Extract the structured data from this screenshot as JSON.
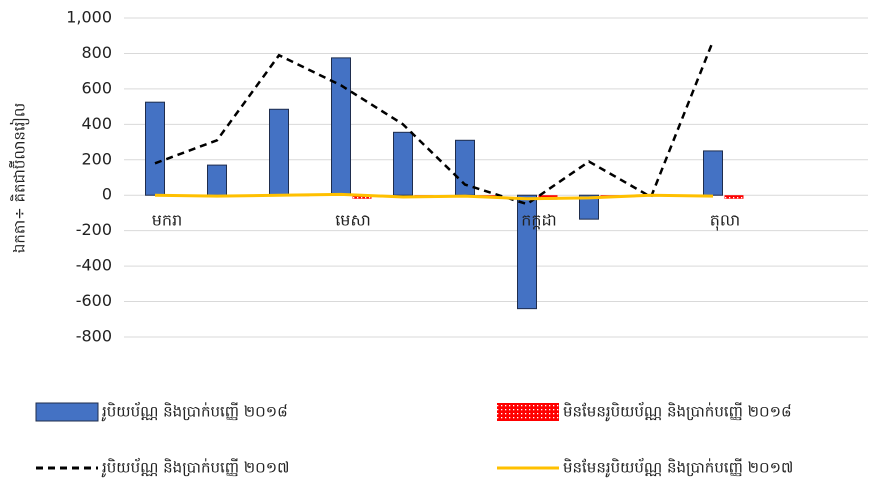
{
  "chart_data": {
    "type": "bar",
    "y_label": "ឯកតា÷ គិតជាប៊ីលានរៀល",
    "categories": [
      "មករា",
      null,
      null,
      "មេសា",
      null,
      null,
      "កក្កដា",
      null,
      null,
      "តុលា",
      null,
      null
    ],
    "series": [
      {
        "name": "រូបិយប័ណ្ណ និងប្រាក់បញ្ញើ ២០១៨",
        "type": "bar",
        "color": "#4472c4",
        "values": [
          525,
          170,
          485,
          775,
          355,
          310,
          -640,
          -135,
          0,
          250,
          null,
          null
        ]
      },
      {
        "name": "មិនមែនរូបិយប័ណ្ណ និងប្រាក់បញ្ញើ ២០១៨",
        "type": "bar",
        "color": "#ff0000",
        "values": [
          0,
          0,
          -5,
          -20,
          -5,
          -15,
          -25,
          -5,
          0,
          -20,
          null,
          null
        ]
      },
      {
        "name": "រូបិយប័ណ្ណ និងប្រាក់បញ្ញើ ២០១៧",
        "type": "line",
        "color": "#000000",
        "dashed": true,
        "values": [
          180,
          310,
          790,
          620,
          400,
          60,
          -50,
          190,
          -10,
          870,
          null,
          null
        ]
      },
      {
        "name": "មិនមែនរូបិយប័ណ្ណ និងប្រាក់បញ្ញើ ២០១៧",
        "type": "line",
        "color": "#ffc000",
        "values": [
          0,
          -5,
          0,
          5,
          -10,
          -5,
          -20,
          -15,
          0,
          -5,
          null,
          null
        ]
      }
    ],
    "ylim": [
      -800,
      1000
    ],
    "yticks": [
      {
        "value": 1000,
        "label": "1,000"
      },
      800,
      600,
      400,
      200,
      0,
      -200,
      -400,
      -600,
      -800
    ],
    "grid": true,
    "legend": "bottom"
  }
}
